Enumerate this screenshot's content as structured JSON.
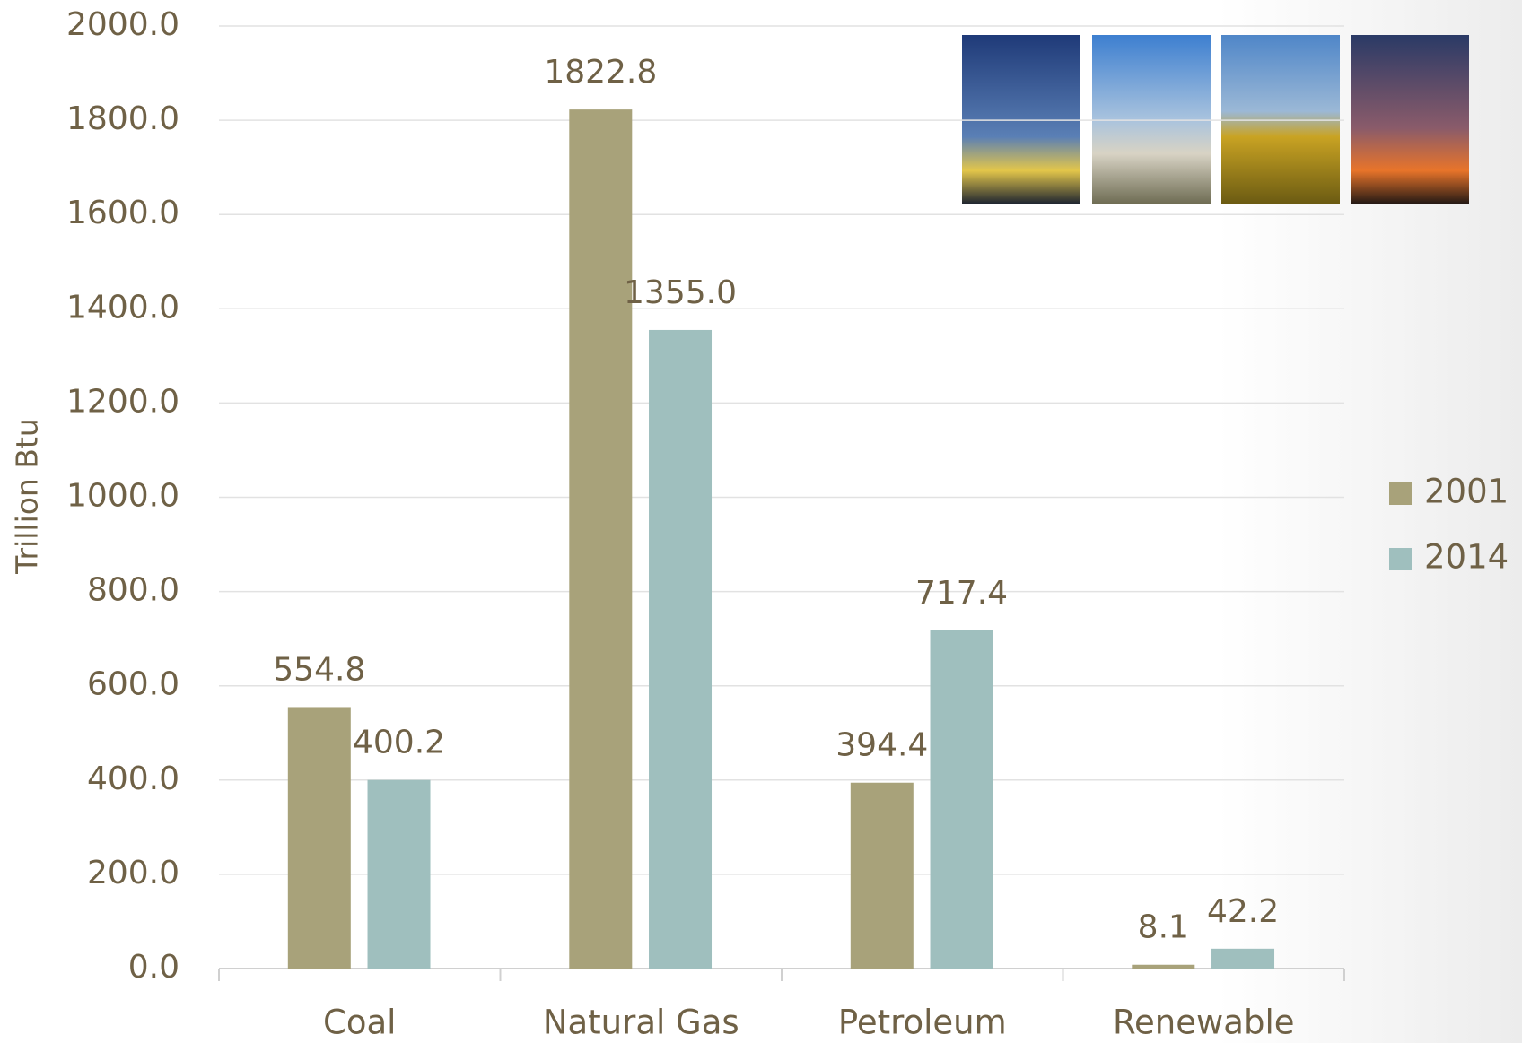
{
  "chart_data": {
    "type": "bar",
    "y_label": "Trillion Btu",
    "categories": [
      "Coal",
      "Natural Gas",
      "Petroleum",
      "Renewable"
    ],
    "series": [
      {
        "name": "2001",
        "color": "#a8a27a",
        "values": [
          554.8,
          1822.8,
          394.4,
          8.1
        ],
        "value_labels": [
          "554.8",
          "1822.8",
          "394.4",
          "8.1"
        ]
      },
      {
        "name": "2014",
        "color": "#9fbfbe",
        "values": [
          400.2,
          1355.0,
          717.4,
          42.2
        ],
        "value_labels": [
          "400.2",
          "1355.0",
          "717.4",
          "42.2"
        ]
      }
    ],
    "ylim": [
      0,
      2000
    ],
    "yticks": [
      {
        "value": 0,
        "label": "0.0"
      },
      {
        "value": 200,
        "label": "200.0"
      },
      {
        "value": 400,
        "label": "400.0"
      },
      {
        "value": 600,
        "label": "600.0"
      },
      {
        "value": 800,
        "label": "800.0"
      },
      {
        "value": 1000,
        "label": "1000.0"
      },
      {
        "value": 1200,
        "label": "1200.0"
      },
      {
        "value": 1400,
        "label": "1400.0"
      },
      {
        "value": 1600,
        "label": "1600.0"
      },
      {
        "value": 1800,
        "label": "1800.0"
      },
      {
        "value": 2000,
        "label": "2000.0"
      }
    ],
    "grid": true,
    "legend": "right"
  }
}
